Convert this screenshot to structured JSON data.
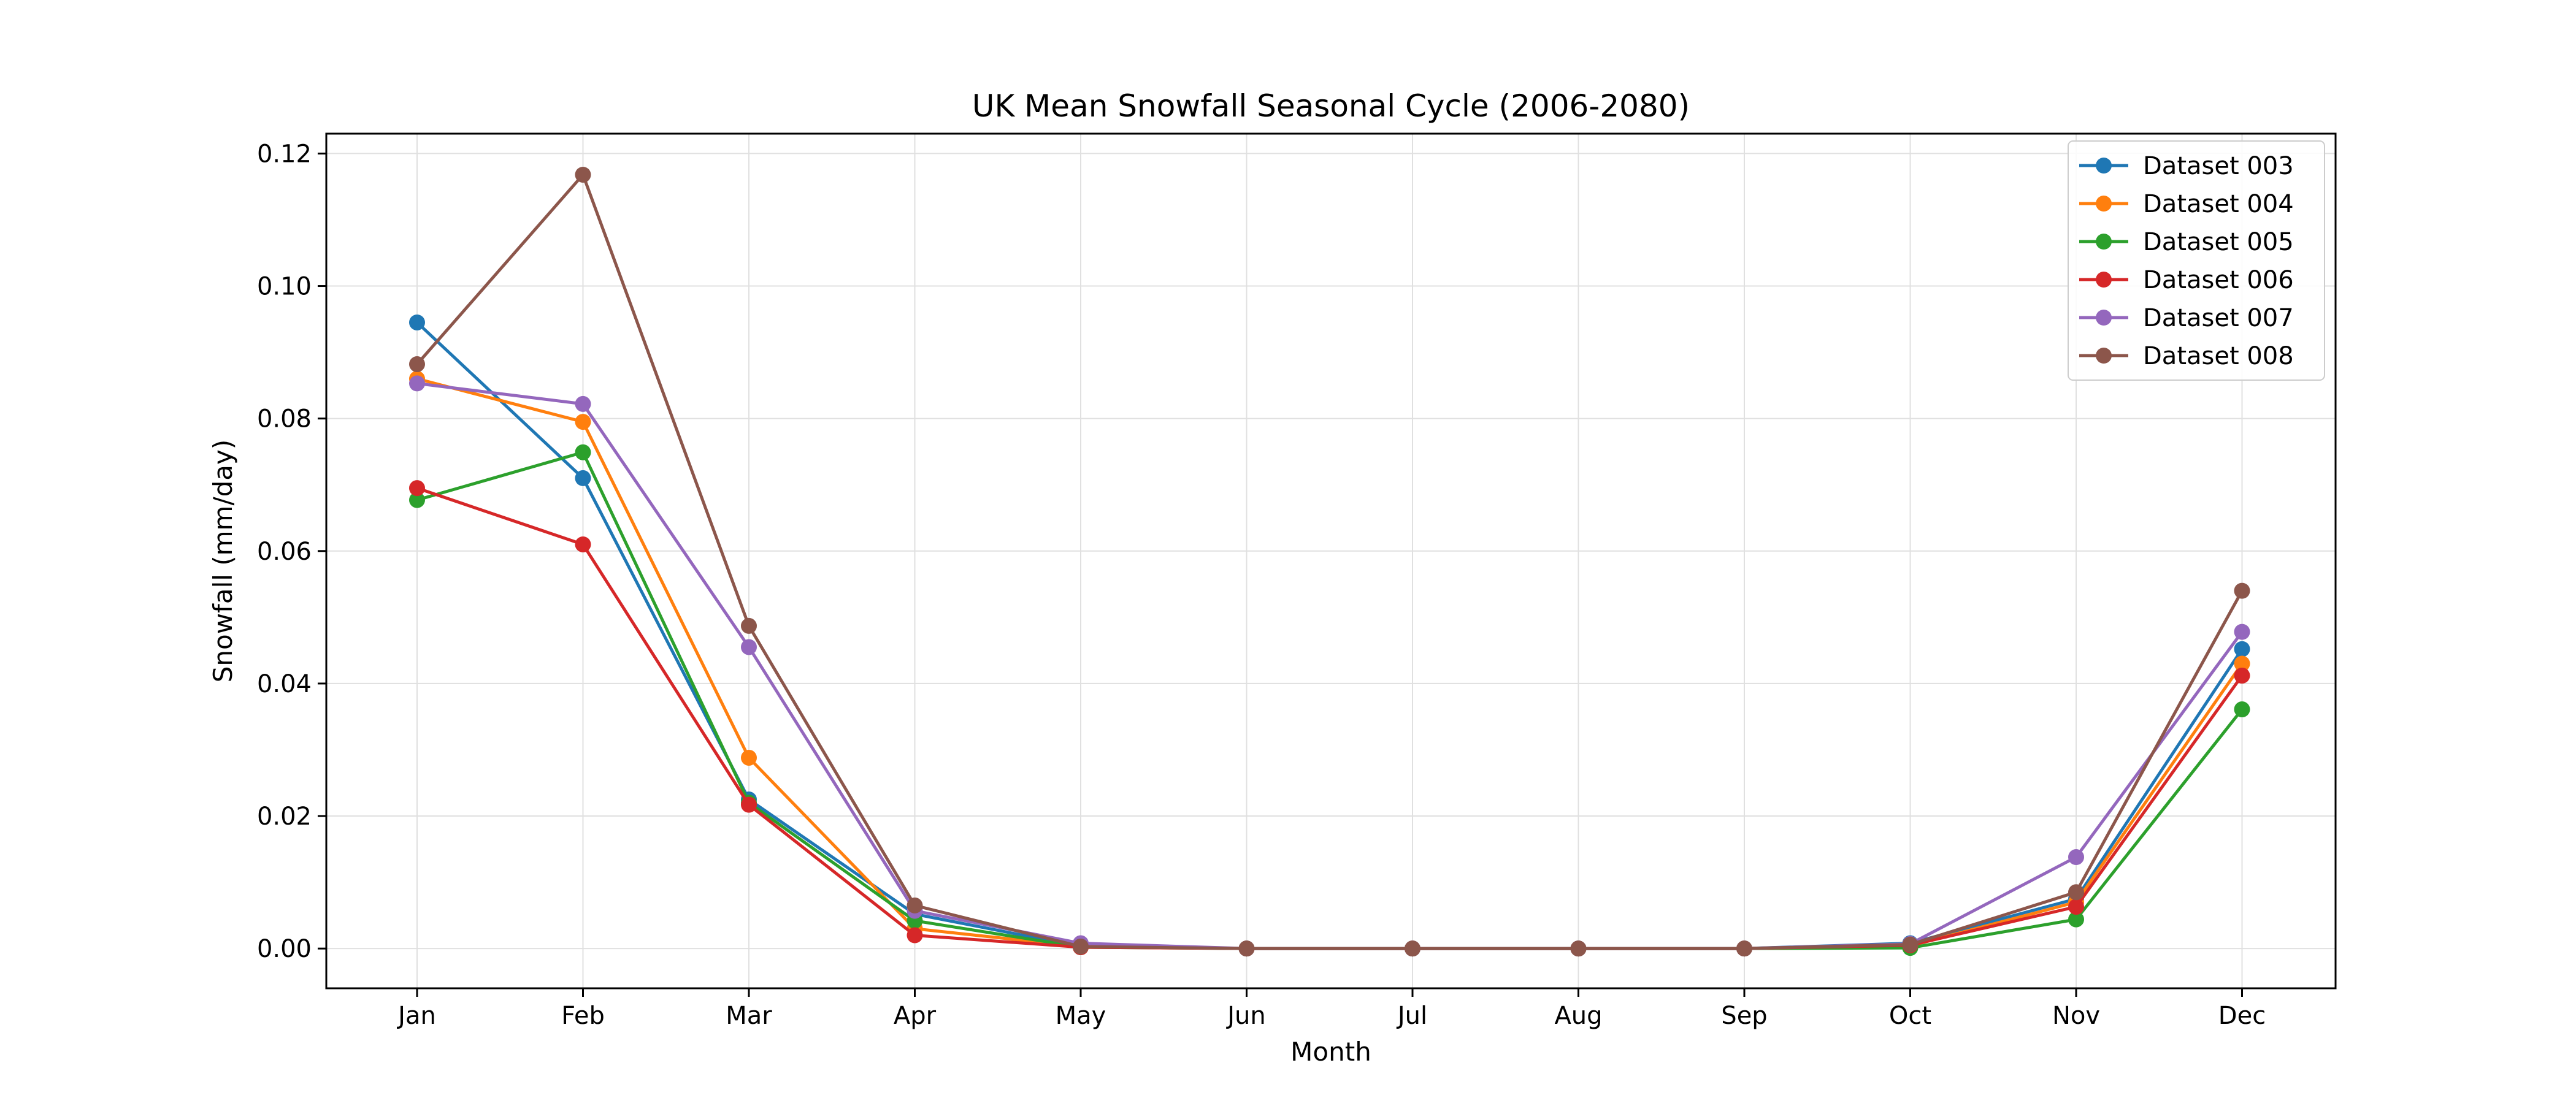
{
  "chart_data": {
    "type": "line",
    "title": "UK Mean Snowfall Seasonal Cycle (2006-2080)",
    "xlabel": "Month",
    "ylabel": "Snowfall (mm/day)",
    "categories": [
      "Jan",
      "Feb",
      "Mar",
      "Apr",
      "May",
      "Jun",
      "Jul",
      "Aug",
      "Sep",
      "Oct",
      "Nov",
      "Dec"
    ],
    "ylim": [
      -0.006,
      0.123
    ],
    "yticks": [
      0.0,
      0.02,
      0.04,
      0.06,
      0.08,
      0.1,
      0.12
    ],
    "ytick_labels": [
      "0.00",
      "0.02",
      "0.04",
      "0.06",
      "0.08",
      "0.10",
      "0.12"
    ],
    "grid": true,
    "legend_position": "upper right",
    "series": [
      {
        "name": "Dataset 003",
        "color": "#1f77b4",
        "values": [
          0.0945,
          0.071,
          0.0225,
          0.0052,
          0.0003,
          0.0,
          0.0,
          0.0,
          0.0,
          0.0008,
          0.0075,
          0.0452
        ]
      },
      {
        "name": "Dataset 004",
        "color": "#ff7f0e",
        "values": [
          0.086,
          0.0795,
          0.0288,
          0.003,
          0.0003,
          0.0,
          0.0,
          0.0,
          0.0,
          0.0004,
          0.007,
          0.043
        ]
      },
      {
        "name": "Dataset 005",
        "color": "#2ca02c",
        "values": [
          0.0677,
          0.0749,
          0.022,
          0.0042,
          0.0002,
          0.0,
          0.0,
          0.0,
          0.0,
          0.0001,
          0.0044,
          0.0361
        ]
      },
      {
        "name": "Dataset 006",
        "color": "#d62728",
        "values": [
          0.0695,
          0.061,
          0.0217,
          0.002,
          0.0002,
          0.0,
          0.0,
          0.0,
          0.0,
          0.0005,
          0.0063,
          0.0412
        ]
      },
      {
        "name": "Dataset 007",
        "color": "#9467bd",
        "values": [
          0.0853,
          0.0822,
          0.0455,
          0.0057,
          0.0008,
          0.0,
          0.0,
          0.0,
          0.0,
          0.0007,
          0.0138,
          0.0478
        ]
      },
      {
        "name": "Dataset 008",
        "color": "#8c564b",
        "values": [
          0.0882,
          0.1168,
          0.0487,
          0.0065,
          0.0003,
          0.0,
          0.0,
          0.0,
          0.0,
          0.0006,
          0.0085,
          0.054
        ]
      }
    ]
  }
}
